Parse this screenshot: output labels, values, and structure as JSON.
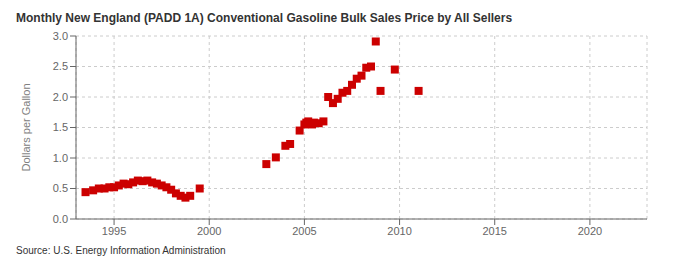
{
  "chart_data": {
    "type": "scatter",
    "title": "Monthly New England (PADD 1A) Conventional Gasoline Bulk Sales Price by All Sellers",
    "ylabel": "Dollars per Gallon",
    "annotations": [
      "Source: U.S. Energy Information Administration"
    ],
    "color": "#cc0000",
    "marker": "square",
    "grid": true,
    "xlim": [
      1993,
      2023
    ],
    "ylim": [
      0.0,
      3.0
    ],
    "xticks": [
      1995,
      2000,
      2005,
      2010,
      2015,
      2020
    ],
    "yticks": [
      {
        "value": 0,
        "label": "0.0"
      },
      0.5,
      {
        "value": 1,
        "label": "1.0"
      },
      1.5,
      {
        "value": 2,
        "label": "2.0"
      },
      2.5,
      {
        "value": 3,
        "label": "3.0"
      }
    ],
    "x": [
      1993.5,
      1993.9,
      1994.2,
      1994.5,
      1994.75,
      1995.0,
      1995.25,
      1995.5,
      1995.75,
      1996.0,
      1996.25,
      1996.5,
      1996.75,
      1997.0,
      1997.25,
      1997.5,
      1997.75,
      1998.0,
      1998.25,
      1998.5,
      1998.75,
      1999.0,
      1999.5,
      2003.0,
      2003.5,
      2004.0,
      2004.25,
      2004.75,
      2005.0,
      2005.1,
      2005.2,
      2005.4,
      2005.5,
      2005.75,
      2006.0,
      2006.25,
      2006.5,
      2006.75,
      2007.0,
      2007.25,
      2007.5,
      2007.75,
      2008.0,
      2008.25,
      2008.5,
      2008.75,
      2009.0,
      2009.75,
      2011.0
    ],
    "values": [
      0.44,
      0.47,
      0.5,
      0.5,
      0.52,
      0.52,
      0.55,
      0.58,
      0.57,
      0.6,
      0.63,
      0.62,
      0.63,
      0.6,
      0.58,
      0.55,
      0.52,
      0.48,
      0.42,
      0.38,
      0.35,
      0.38,
      0.5,
      0.9,
      1.01,
      1.2,
      1.23,
      1.45,
      1.55,
      1.58,
      1.6,
      1.55,
      1.58,
      1.57,
      1.6,
      2.0,
      1.9,
      1.97,
      2.07,
      2.1,
      2.2,
      2.3,
      2.35,
      2.48,
      2.5,
      2.91,
      2.1,
      2.45,
      2.1
    ]
  }
}
